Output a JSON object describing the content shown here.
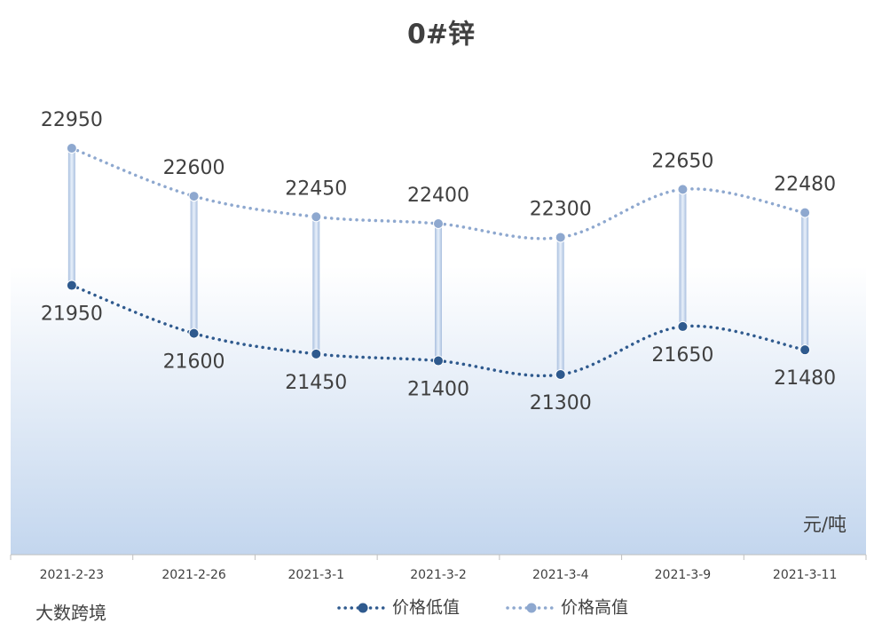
{
  "chart_data": {
    "type": "line",
    "title": "0#锌",
    "unit_label": "元/吨",
    "watermark": "大数跨境",
    "categories": [
      "2021-2-23",
      "2021-2-26",
      "2021-3-1",
      "2021-3-2",
      "2021-3-4",
      "2021-3-9",
      "2021-3-11"
    ],
    "series": [
      {
        "name": "价格低值",
        "color": "#2f5a8e",
        "values": [
          21950,
          21600,
          21450,
          21400,
          21300,
          21650,
          21480
        ]
      },
      {
        "name": "价格高值",
        "color": "#8ea8cf",
        "values": [
          22950,
          22600,
          22450,
          22400,
          22300,
          22650,
          22480
        ]
      }
    ],
    "high_low_lines": true
  }
}
